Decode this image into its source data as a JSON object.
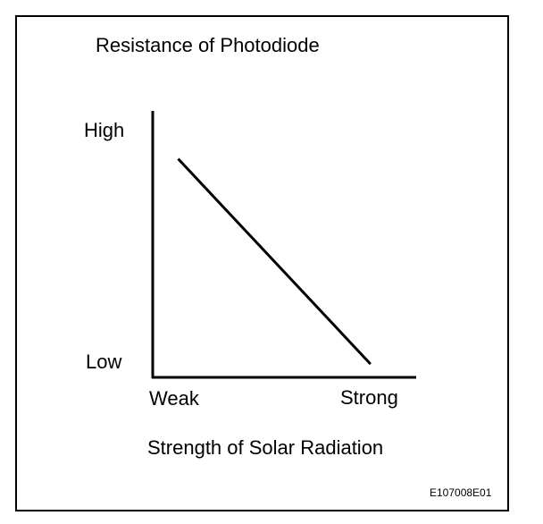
{
  "chart_data": {
    "type": "line",
    "title": "Resistance of Photodiode",
    "xlabel": "Strength of Solar Radiation",
    "ylabel": "",
    "x_tick_labels": [
      "Weak",
      "Strong"
    ],
    "y_tick_labels": [
      "High",
      "Low"
    ],
    "xlim": [
      0,
      1
    ],
    "ylim": [
      0,
      1
    ],
    "series": [
      {
        "name": "Resistance",
        "x": [
          0.1,
          0.83
        ],
        "y": [
          0.82,
          0.05
        ]
      }
    ],
    "grid": false
  },
  "figure_code": "E107008E01"
}
